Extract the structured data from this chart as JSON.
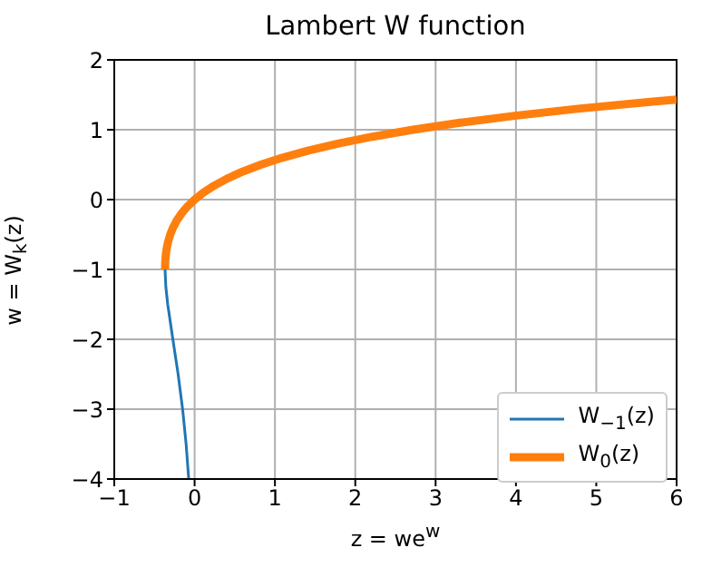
{
  "chart_data": {
    "type": "line",
    "title": "Lambert W function",
    "xlabel": "z = we$^{w}$",
    "ylabel": "w = W$_{k}$(z)",
    "series": [
      {
        "name": "W$_{−1}$(z)",
        "color": "#1f77b4",
        "x": [
          -0.3679,
          -0.3581,
          -0.3347,
          -0.2707,
          -0.2052,
          -0.1494,
          -0.1057,
          -0.0733
        ],
        "values": [
          -1,
          -1.25,
          -1.5,
          -2,
          -2.5,
          -3,
          -3.5,
          -4
        ]
      },
      {
        "name": "W$_{0}$(z)",
        "color": "#ff7f0e",
        "x": [
          -0.3679,
          -0.3659,
          -0.3595,
          -0.3476,
          -0.3293,
          -0.3033,
          -0.2681,
          -0.2222,
          -0.1637,
          -0.0905,
          0,
          0.1105,
          0.2443,
          0.405,
          0.5967,
          0.8244,
          1.0933,
          1.4096,
          1.7804,
          2.2136,
          2.7183,
          3.3046,
          3.9841,
          4.7697,
          5.677,
          6
        ],
        "values": [
          -1,
          -0.9,
          -0.8,
          -0.7,
          -0.6,
          -0.5,
          -0.4,
          -0.3,
          -0.2,
          -0.1,
          0,
          0.1,
          0.2,
          0.3,
          0.4,
          0.5,
          0.6,
          0.7,
          0.8,
          0.9,
          1,
          1.1,
          1.2,
          1.3,
          1.4,
          1.4324
        ]
      }
    ],
    "xlim": [
      -1,
      6
    ],
    "xticks": [
      {
        "value": -1,
        "label": "−1"
      },
      0,
      1,
      2,
      3,
      4,
      5,
      6
    ],
    "ylim": [
      -4,
      2
    ],
    "yticks": [
      {
        "value": -4,
        "label": "−4"
      },
      {
        "value": -3,
        "label": "−3"
      },
      {
        "value": -2,
        "label": "−2"
      },
      {
        "value": -1,
        "label": "−1"
      },
      0,
      1,
      2
    ],
    "grid": true,
    "legend": "bottom right",
    "marker": "none",
    "line_style": "solid"
  }
}
